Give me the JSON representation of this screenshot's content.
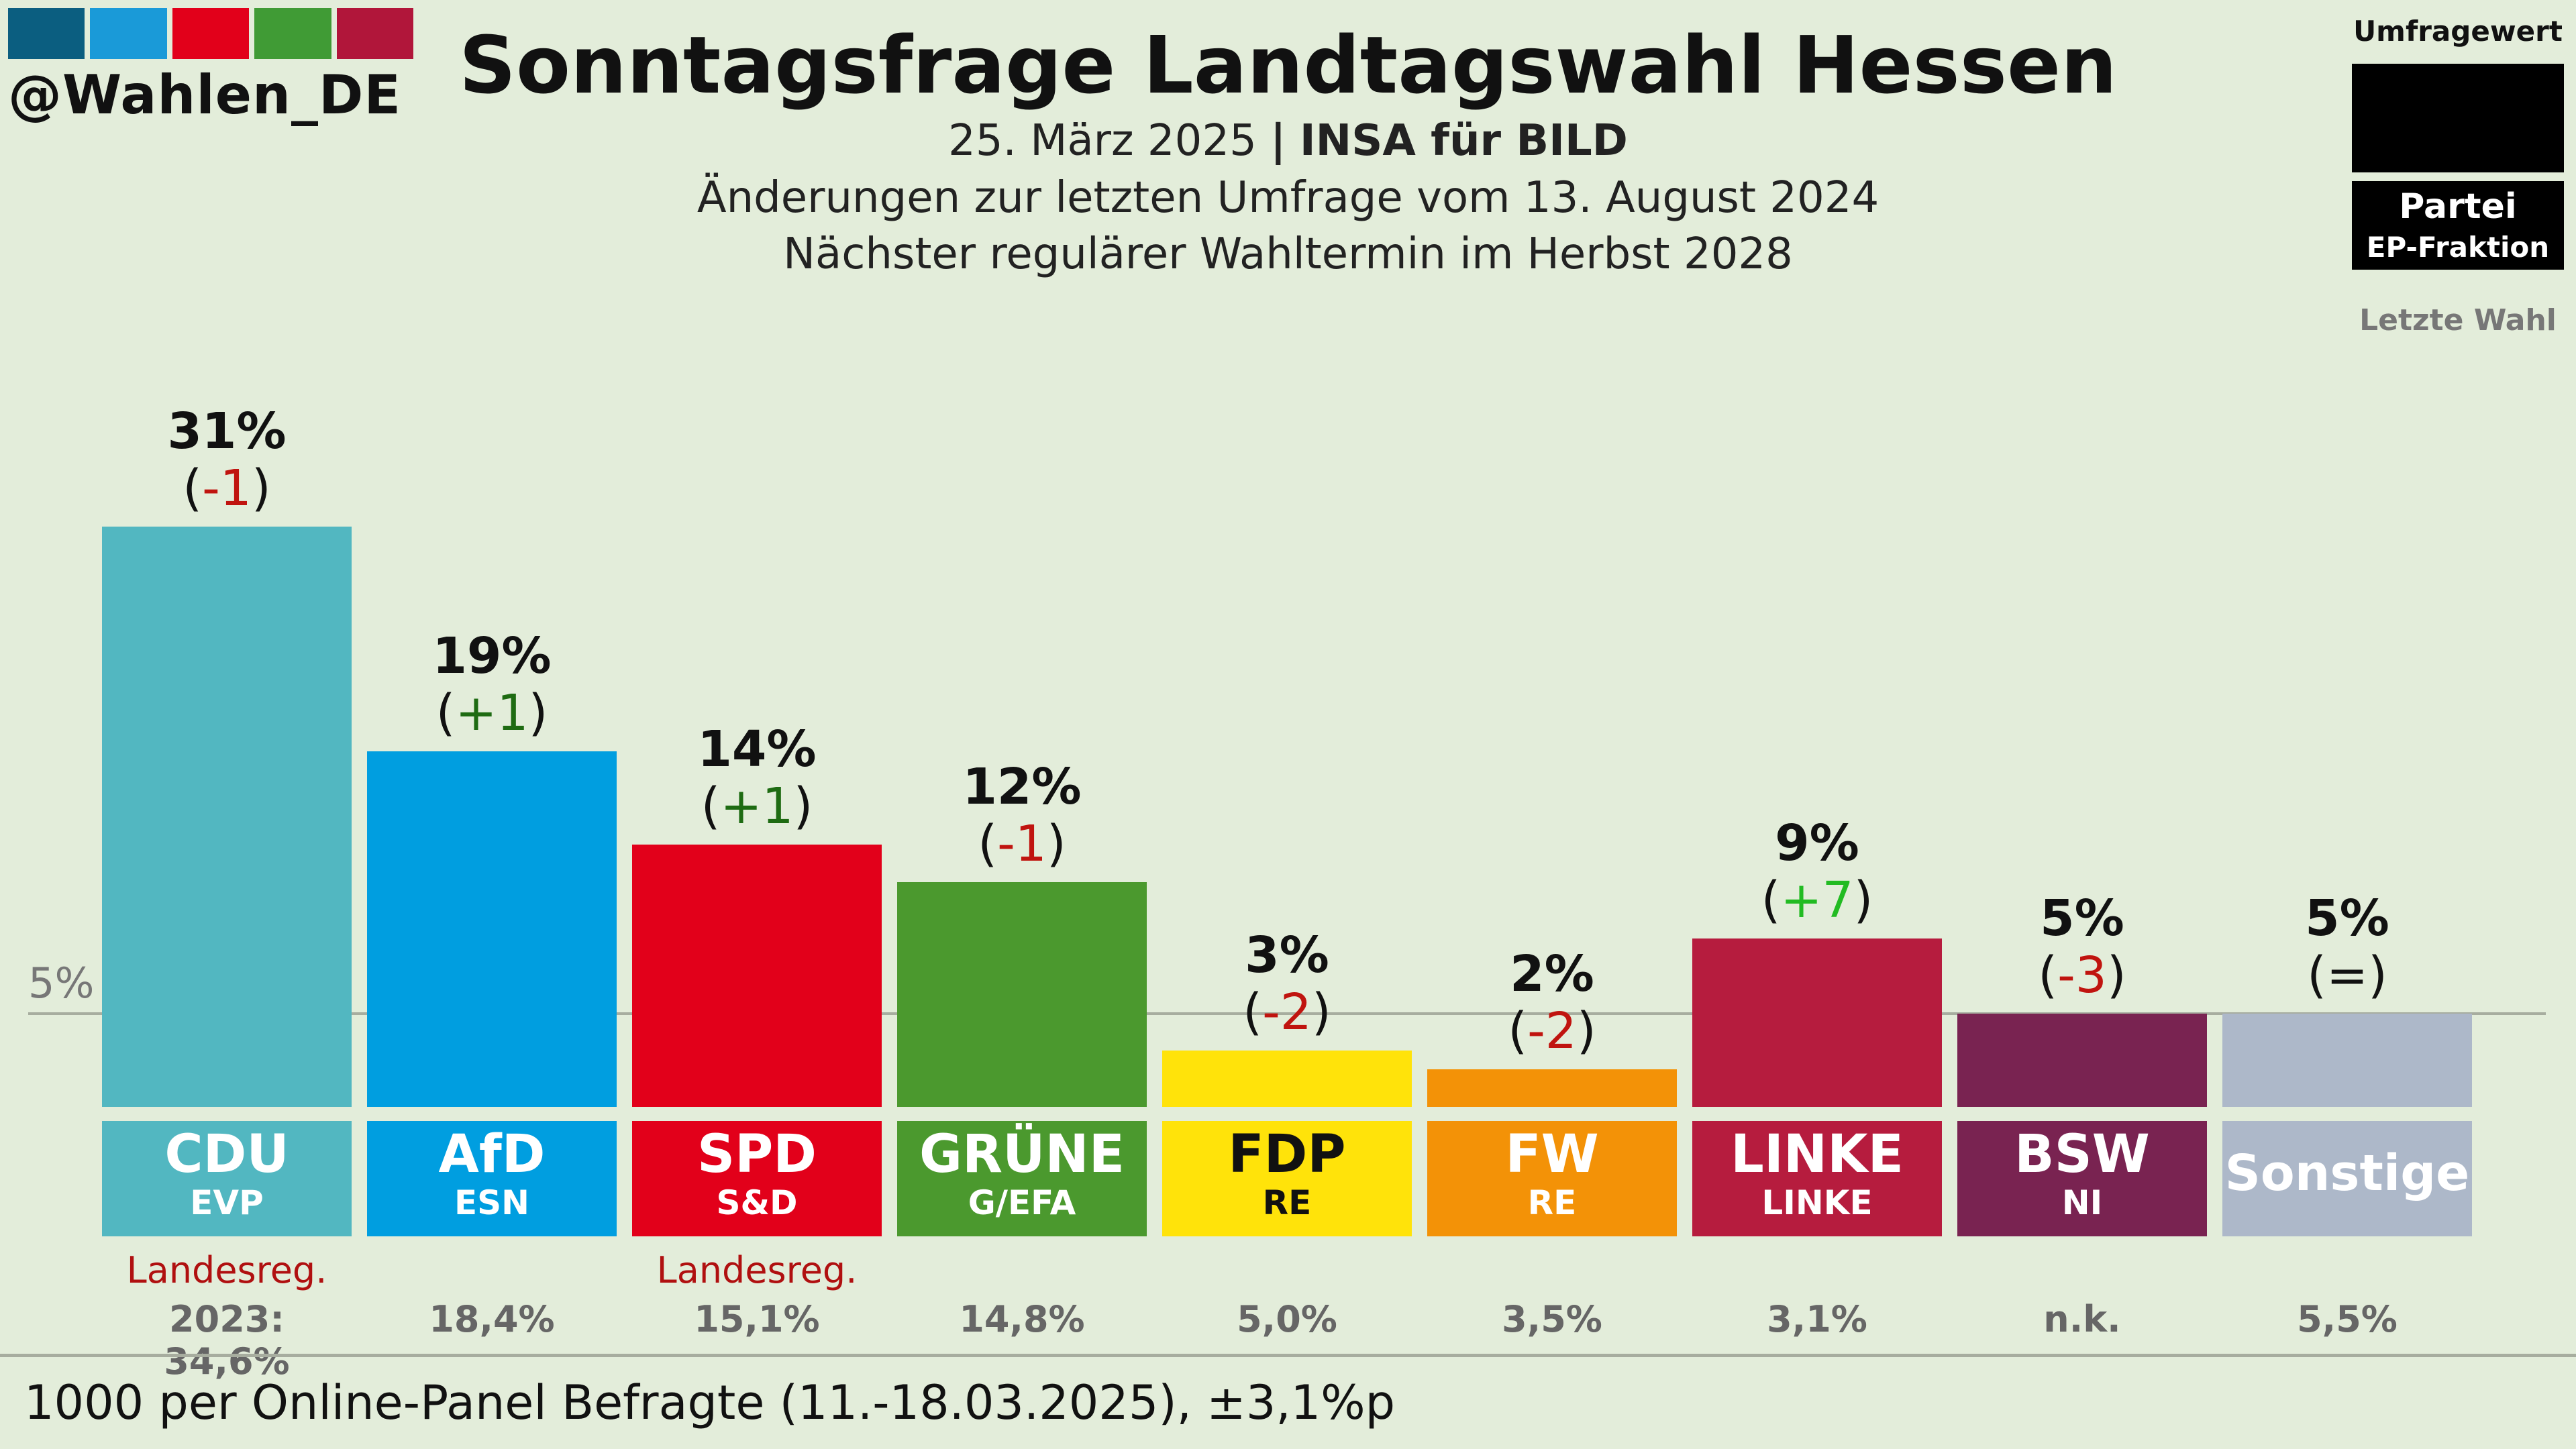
{
  "header": {
    "handle": "@Wahlen_DE",
    "stripe_colors": [
      "#0b5e80",
      "#1a9ad8",
      "#e2001a",
      "#409b35",
      "#b1163a"
    ],
    "title": "Sonntagsfrage Landtagswahl Hessen",
    "date": "25. März 2025",
    "separator": "|",
    "pollster": "INSA für BILD",
    "changes_note": "Änderungen zur letzten Umfrage vom 13. August 2024",
    "next_election": "Nächster regulärer Wahltermin im Herbst 2028"
  },
  "legend": {
    "poll_value": "Umfragewert",
    "party": "Partei",
    "ep_group": "EP-Fraktion",
    "last_election": "Letzte Wahl"
  },
  "footer": "1000 per Online-Panel Befragte (11.-18.03.2025), ±3,1%p",
  "chart_data": {
    "type": "bar",
    "title": "Sonntagsfrage Landtagswahl Hessen",
    "categories": [
      "CDU",
      "AfD",
      "SPD",
      "GRÜNE",
      "FDP",
      "FW",
      "LINKE",
      "BSW",
      "Sonstige"
    ],
    "values": [
      31,
      19,
      14,
      12,
      3,
      2,
      9,
      5,
      5
    ],
    "reference_line": {
      "value": 5,
      "label": "5%"
    },
    "bars": [
      {
        "party": "CDU",
        "ep": "EVP",
        "value": 31,
        "value_label": "31%",
        "change": "-1",
        "change_dir": "down",
        "color": "#52b7c1",
        "text_color": "#ffffff",
        "note": "Landesreg.",
        "last": "2023: 34,6%"
      },
      {
        "party": "AfD",
        "ep": "ESN",
        "value": 19,
        "value_label": "19%",
        "change": "+1",
        "change_dir": "up",
        "color": "#009ee0",
        "text_color": "#ffffff",
        "note": "",
        "last": "18,4%"
      },
      {
        "party": "SPD",
        "ep": "S&D",
        "value": 14,
        "value_label": "14%",
        "change": "+1",
        "change_dir": "up",
        "color": "#e2001a",
        "text_color": "#ffffff",
        "note": "Landesreg.",
        "last": "15,1%"
      },
      {
        "party": "GRÜNE",
        "ep": "G/EFA",
        "value": 12,
        "value_label": "12%",
        "change": "-1",
        "change_dir": "down",
        "color": "#4b992e",
        "text_color": "#ffffff",
        "note": "",
        "last": "14,8%"
      },
      {
        "party": "FDP",
        "ep": "RE",
        "value": 3,
        "value_label": "3%",
        "change": "-2",
        "change_dir": "down",
        "color": "#ffe30a",
        "text_color": "#111111",
        "note": "",
        "last": "5,0%"
      },
      {
        "party": "FW",
        "ep": "RE",
        "value": 2,
        "value_label": "2%",
        "change": "-2",
        "change_dir": "down",
        "color": "#f39207",
        "text_color": "#ffffff",
        "note": "",
        "last": "3,5%"
      },
      {
        "party": "LINKE",
        "ep": "LINKE",
        "value": 9,
        "value_label": "9%",
        "change": "+7",
        "change_dir": "up_strong",
        "color": "#b61c3e",
        "text_color": "#ffffff",
        "note": "",
        "last": "3,1%"
      },
      {
        "party": "BSW",
        "ep": "NI",
        "value": 5,
        "value_label": "5%",
        "change": "-3",
        "change_dir": "down",
        "color": "#792351",
        "text_color": "#ffffff",
        "note": "",
        "last": "n.k."
      },
      {
        "party": "Sonstige",
        "ep": "",
        "value": 5,
        "value_label": "5%",
        "change": "=",
        "change_dir": "same",
        "color": "#adb8c9",
        "text_color": "#ffffff",
        "note": "",
        "last": "5,5%"
      }
    ],
    "change_colors": {
      "down": "#c0140f",
      "up": "#1e6b12",
      "up_strong": "#22bb22",
      "same": "#111111"
    }
  }
}
